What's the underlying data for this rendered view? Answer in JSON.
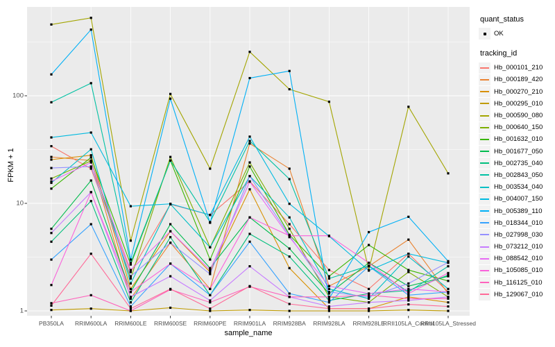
{
  "colors": {
    "panel_bg": "#EBEBEB",
    "grid_major": "#FFFFFF",
    "grid_minor": "#FFFFFF",
    "tick_text": "#4d4d4d",
    "point": "#000000",
    "legend_key_bg": "#F2F2F2"
  },
  "y_axis": {
    "title": "FPKM + 1",
    "tick_labels": [
      "100",
      "10",
      "1"
    ],
    "tick_values": [
      100,
      10,
      1
    ]
  },
  "x_axis": {
    "title": "sample_name"
  },
  "legend": {
    "quant_status": {
      "title": "quant_status",
      "ok_label": "OK"
    },
    "tracking": {
      "title": "tracking_id"
    }
  },
  "chart_data": {
    "type": "line",
    "title": "",
    "xlabel": "sample_name",
    "ylabel": "FPKM + 1",
    "yscale": "log10",
    "ylim": [
      1,
      670
    ],
    "grid": true,
    "legend_position": "right",
    "point_marker": "black-square",
    "categories": [
      "PB350LA",
      "RRIM600LA",
      "RRIM600LE",
      "RRIM600SE",
      "RRIM600PE",
      "RRIM901LA",
      "RRIM928BA",
      "RRIM928LA",
      "RRIM928LE",
      "RRII105LA_Control",
      "RRII105LA_Stressed"
    ],
    "series": [
      {
        "name": "Hb_000101_210",
        "color": "#F8766D",
        "values": [
          34,
          21,
          2.3,
          9.8,
          7.8,
          16,
          6.4,
          2.4,
          1.6,
          3.4,
          1.5
        ]
      },
      {
        "name": "Hb_000189_420",
        "color": "#EA8331",
        "values": [
          27,
          25,
          1.3,
          4.3,
          1.6,
          36,
          21,
          1.7,
          2.6,
          4.6,
          1.45
        ]
      },
      {
        "name": "Hb_000270_210",
        "color": "#D89000",
        "values": [
          25.5,
          28,
          1.6,
          5.5,
          2.3,
          13.5,
          2.5,
          1.05,
          1.05,
          1.35,
          1.2
        ]
      },
      {
        "name": "Hb_000295_010",
        "color": "#C09B00",
        "values": [
          1.02,
          1.05,
          1.0,
          1.07,
          1.0,
          1.02,
          1.0,
          1.0,
          1.0,
          1.02,
          1.0
        ]
      },
      {
        "name": "Hb_000590_080",
        "color": "#A3A500",
        "values": [
          460,
          530,
          4.5,
          104,
          21,
          256,
          115,
          88,
          2.4,
          79,
          19
        ]
      },
      {
        "name": "Hb_000640_150",
        "color": "#7CAE00",
        "values": [
          17,
          24.8,
          2.0,
          27,
          3.9,
          24,
          5.8,
          1.35,
          1.2,
          2.3,
          1.35
        ]
      },
      {
        "name": "Hb_001632_010",
        "color": "#39B600",
        "values": [
          13.7,
          26.7,
          2.7,
          25,
          3.0,
          22,
          5.1,
          2.1,
          4.1,
          2.4,
          1.9
        ]
      },
      {
        "name": "Hb_001677_050",
        "color": "#00BB4E",
        "values": [
          5.8,
          16.3,
          1.5,
          6.4,
          2.5,
          7.4,
          3.8,
          1.45,
          2.8,
          1.7,
          2.1
        ]
      },
      {
        "name": "Hb_002735_040",
        "color": "#00BF7D",
        "values": [
          4.4,
          10.5,
          1.2,
          4.85,
          1.4,
          5.2,
          3.2,
          1.25,
          1.45,
          1.55,
          2.15
        ]
      },
      {
        "name": "Hb_002843_050",
        "color": "#00C1A3",
        "values": [
          87,
          131,
          2.8,
          25,
          6.7,
          38,
          16.8,
          2.0,
          2.63,
          1.5,
          2.6
        ]
      },
      {
        "name": "Hb_003534_040",
        "color": "#00BFC4",
        "values": [
          15.5,
          31.8,
          1.8,
          9.85,
          3.9,
          17.9,
          7.4,
          1.6,
          1.3,
          3.2,
          1.6
        ]
      },
      {
        "name": "Hb_004007_150",
        "color": "#00BAE0",
        "values": [
          41,
          45.5,
          9.4,
          9.9,
          7.8,
          41.7,
          9.9,
          4.95,
          2.37,
          3.4,
          2.8
        ]
      },
      {
        "name": "Hb_005389_110",
        "color": "#00B0F6",
        "values": [
          158,
          412,
          3.0,
          94,
          6.6,
          146,
          170,
          1.3,
          5.4,
          7.5,
          2.9
        ]
      },
      {
        "name": "Hb_018344_010",
        "color": "#35A2FF",
        "values": [
          3.0,
          6.4,
          1.1,
          2.75,
          1.4,
          4.4,
          1.45,
          1.2,
          2.6,
          1.4,
          1.5
        ]
      },
      {
        "name": "Hb_027998_030",
        "color": "#9590FF",
        "values": [
          21.3,
          22,
          2.1,
          4.3,
          2.2,
          17.9,
          5.0,
          1.5,
          1.35,
          1.8,
          2.83
        ]
      },
      {
        "name": "Hb_073212_010",
        "color": "#C77CFF",
        "values": [
          5.3,
          12.7,
          1.35,
          2.1,
          1.25,
          2.6,
          1.35,
          1.1,
          1.2,
          1.25,
          1.35
        ]
      },
      {
        "name": "Hb_088542_010",
        "color": "#E76BF3",
        "values": [
          16,
          24,
          2.4,
          5.5,
          2.4,
          15.9,
          4.85,
          1.7,
          1.45,
          1.6,
          1.5
        ]
      },
      {
        "name": "Hb_105085_010",
        "color": "#FA62DB",
        "values": [
          1.74,
          12.7,
          1.5,
          2.75,
          1.6,
          7.4,
          5.0,
          5.0,
          2.8,
          1.45,
          2.25
        ]
      },
      {
        "name": "Hb_116125_010",
        "color": "#FF62BC",
        "values": [
          1.18,
          1.4,
          1.0,
          1.58,
          1.2,
          1.68,
          1.35,
          1.35,
          1.4,
          1.3,
          1.3
        ]
      },
      {
        "name": "Hb_129067_010",
        "color": "#FF6A98",
        "values": [
          1.12,
          3.4,
          1.05,
          1.6,
          1.05,
          1.7,
          1.16,
          1.05,
          1.05,
          1.15,
          1.1
        ]
      }
    ]
  }
}
